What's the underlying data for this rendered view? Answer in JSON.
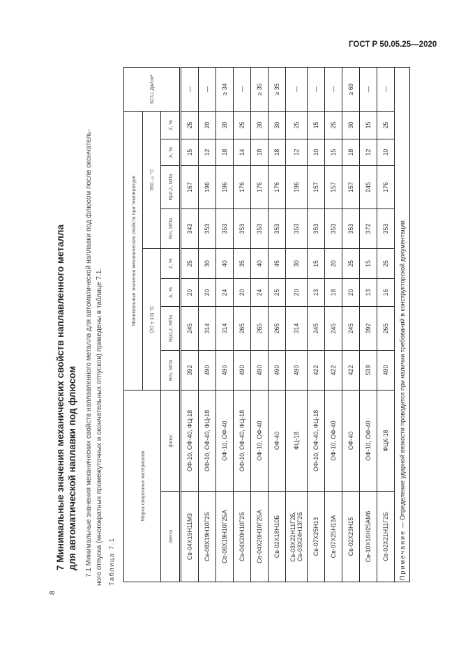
{
  "header": {
    "standard": "ГОСТ Р 50.05.25—2020"
  },
  "page_number": "8",
  "section": {
    "heading_line1": "7 Минимальные значения механических свойств наплавленного металла",
    "heading_line2": "для автоматической наплавки под флюсом",
    "para_line1": "7.1 Минимальные значения механических свойств наплавленного металла для автоматической наплавки под флюсом после окончатель-",
    "para_line2": "ного отпуска (многократных промежуточных и окончательных отпусков) приведены в таблице 7.1.",
    "table_caption": "Таблица 7.1"
  },
  "table": {
    "h_materials": "Марка сварочных материалов",
    "h_min": "Минимальные значения механических свойств при температуре",
    "h_kcu": "KCU, Дж/см²",
    "h_t20": "(20 ± 10) °С",
    "h_t350": "350₋₂₅ °С",
    "h_tape": "лента",
    "h_flux": "флюс",
    "h_rm": "Rm, МПа",
    "h_rp": "Rp0,2, МПа",
    "h_a": "A, %",
    "h_z": "Z, %",
    "rows": [
      [
        "Св-04Х19Н11М3",
        "ОФ-10, ОФ-40, ФЦ-18",
        "392",
        "245",
        "20",
        "25",
        "343",
        "167",
        "15",
        "25",
        "—"
      ],
      [
        "Св-08Х19Н10Г2Б",
        "ОФ-10, ОФ-40, ФЦ-18",
        "490",
        "314",
        "20",
        "30",
        "353",
        "196",
        "12",
        "20",
        "—"
      ],
      [
        "Св-08Х19Н10Г2БА",
        "ОФ-10, ОФ-40",
        "490",
        "314",
        "24",
        "40",
        "353",
        "196",
        "18",
        "30",
        "≥ 34"
      ],
      [
        "Св-04Х20Н10Г2Б",
        "ОФ-10, ОФ-40, ФЦ-18",
        "490",
        "265",
        "20",
        "35",
        "353",
        "176",
        "14",
        "25",
        "—"
      ],
      [
        "Св-04Х20Н10Г2БА",
        "ОФ-10, ОФ-40",
        "490",
        "265",
        "24",
        "40",
        "353",
        "176",
        "18",
        "30",
        "≥ 35"
      ],
      [
        "Св-02Х18Н10Б",
        "ОФ-40",
        "490",
        "265",
        "25",
        "45",
        "353",
        "176",
        "18",
        "30",
        "≥ 35"
      ],
      [
        "Св-03Х22Н11Г2Б, Св-03Х24Н13Г2Б",
        "ФЦ-18",
        "490",
        "314",
        "20",
        "30",
        "353",
        "196",
        "12",
        "25",
        "—"
      ],
      [
        "Св-07Х25Н13",
        "ОФ-10, ОФ-40, ФЦ-18",
        "422",
        "245",
        "13",
        "15",
        "353",
        "157",
        "10",
        "15",
        "—"
      ],
      [
        "Св-07Х25Н13А",
        "ОФ-10, ОФ-40",
        "422",
        "245",
        "18",
        "20",
        "353",
        "157",
        "15",
        "25",
        "—"
      ],
      [
        "Св-02Х23Н15",
        "ОФ-40",
        "422",
        "245",
        "20",
        "25",
        "353",
        "157",
        "18",
        "30",
        "≥ 69"
      ],
      [
        "Св-10Х16Н25АМ6",
        "ОФ-10, ОФ-40",
        "539",
        "392",
        "13",
        "15",
        "372",
        "245",
        "12",
        "15",
        "—"
      ],
      [
        "Св-02Х21Н11Г2Б",
        "ФЦК-18",
        "490",
        "265",
        "16",
        "25",
        "353",
        "176",
        "10",
        "25",
        "—"
      ]
    ],
    "note_label": "Примечание",
    "note_text": " — Определение ударной вязкости проводится при наличии требований в конструкторской документации."
  }
}
